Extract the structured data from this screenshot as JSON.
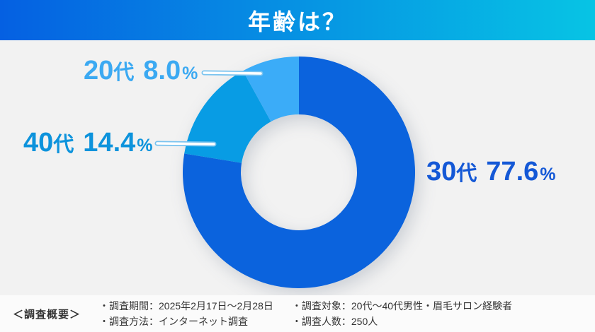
{
  "header": {
    "title": "年齢は？",
    "gradient_left": "#0560E2",
    "gradient_right": "#07C4E4",
    "title_color": "#FFFFFF"
  },
  "chart_data": {
    "type": "pie",
    "title": "年齢は？",
    "donut": true,
    "inner_radius_ratio": 0.5,
    "start_angle_deg": 0,
    "direction": "clockwise",
    "legend_position": "callout-labels",
    "categories": [
      "30代",
      "40代",
      "20代"
    ],
    "values": [
      77.6,
      14.4,
      8.0
    ],
    "segments": [
      {
        "age": "30代",
        "age_num": "30",
        "age_suffix": "代",
        "value": 77.6,
        "value_text": "77.6",
        "unit": "%",
        "color": "#0B63DD",
        "label_color": "#1458D6"
      },
      {
        "age": "40代",
        "age_num": "40",
        "age_suffix": "代",
        "value": 14.4,
        "value_text": "14.4",
        "unit": "%",
        "color": "#089CE4",
        "label_color": "#0D93DC"
      },
      {
        "age": "20代",
        "age_num": "20",
        "age_suffix": "代",
        "value": 8.0,
        "value_text": "8.0",
        "unit": "%",
        "color": "#3BACF8",
        "label_color": "#3BA9F2"
      }
    ]
  },
  "footer": {
    "heading": "＜調査概要＞",
    "col1": [
      "・調査期間：2025年2月17日～2月28日",
      "・調査方法：インターネット調査"
    ],
    "col2": [
      "・調査対象：20代～40代男性・眉毛サロン経験者",
      "・調査人数：250人"
    ],
    "text_color": "#333333",
    "background": "#FBFBFB"
  },
  "colors": {
    "page_background": "#F2F2F2",
    "leader_line_core": "#FFFFFF",
    "leader_line_edge": "#79C3EF"
  }
}
